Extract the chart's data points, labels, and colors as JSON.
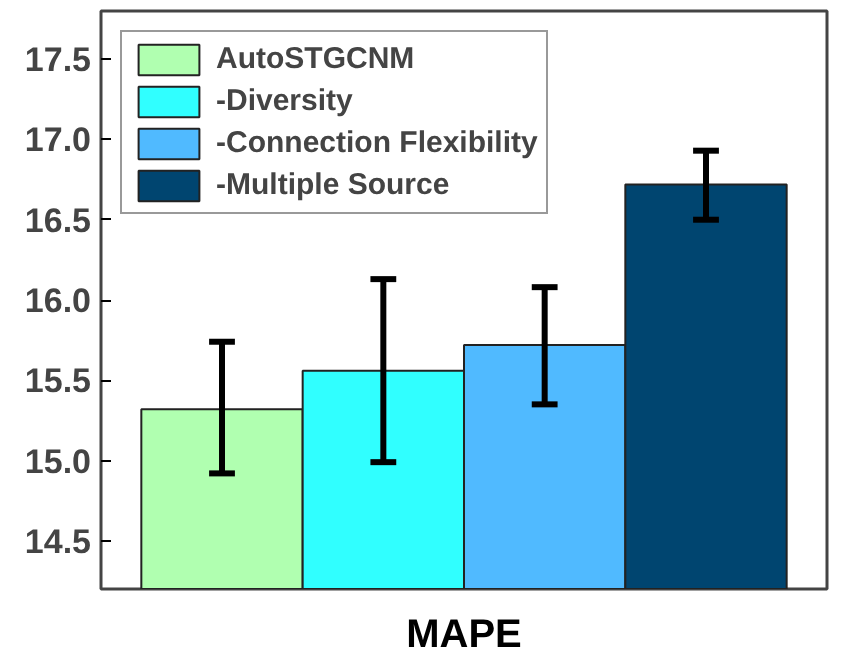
{
  "chart_data": {
    "type": "bar",
    "stacked": true,
    "categories": [
      null,
      null,
      null,
      null
    ],
    "xlabel": "MAPE",
    "series": [
      {
        "name": "AutoSTGCNM",
        "color": "#b0ffb0",
        "values": [
          15.32,
          null,
          null,
          null
        ],
        "errors": [
          [
            14.92,
            15.74
          ],
          null,
          null,
          null
        ]
      },
      {
        "name": "-Diversity",
        "color": "#30ffff",
        "values": [
          null,
          15.56,
          null,
          null
        ],
        "errors": [
          null,
          [
            14.99,
            16.13
          ],
          null,
          null
        ]
      },
      {
        "name": "-Connection Flexibility",
        "color": "#50baff",
        "values": [
          null,
          null,
          15.72,
          null
        ],
        "errors": [
          null,
          null,
          [
            15.35,
            16.08
          ],
          null
        ]
      },
      {
        "name": "-Multiple Source",
        "color": "#004570",
        "values": [
          null,
          null,
          null,
          16.72
        ],
        "errors": [
          null,
          null,
          null,
          [
            16.5,
            16.93
          ]
        ]
      }
    ],
    "ylim": [
      14.2,
      17.8
    ],
    "yticks": [
      {
        "value": 14.5,
        "label": "14.5"
      },
      {
        "value": 15.0,
        "label": "15.0"
      },
      {
        "value": 15.5,
        "label": "15.5"
      },
      {
        "value": 16.0,
        "label": "16.0"
      },
      {
        "value": 16.5,
        "label": "16.5"
      },
      {
        "value": 17.0,
        "label": "17.0"
      },
      {
        "value": 17.5,
        "label": "17.5"
      }
    ],
    "legend": "top left",
    "grid": false
  }
}
